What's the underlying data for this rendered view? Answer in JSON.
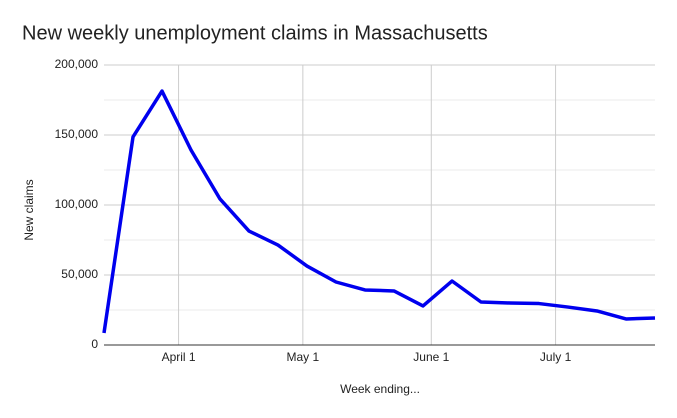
{
  "chart_data": {
    "type": "line",
    "title": "New weekly unemployment claims in Massachusetts",
    "x_label": "Week ending...",
    "y_label": "New claims",
    "x": [
      "March 14",
      "March 21",
      "March 28",
      "April 4",
      "April 11",
      "April 18",
      "April 25",
      "May 2",
      "May 9",
      "May 16",
      "May 23",
      "May 30",
      "June 6",
      "June 13",
      "June 20",
      "June 27",
      "July 4",
      "July 11",
      "July 18",
      "July 25"
    ],
    "series": [
      {
        "name": "New claims",
        "color": "#0000ee",
        "values": [
          8600,
          148600,
          181400,
          139300,
          104300,
          81400,
          71400,
          56400,
          45000,
          39300,
          38600,
          27900,
          45700,
          30700,
          30000,
          29600,
          27100,
          24300,
          18600,
          19300
        ]
      }
    ],
    "xlim": [
      "March 14",
      "July 25"
    ],
    "xticks": [
      "April 1",
      "May 1",
      "June 1",
      "July 1"
    ],
    "ylim": [
      0,
      200000
    ],
    "yticks": [
      0,
      {
        "value": 50000,
        "label": "50,000"
      },
      {
        "value": 100000,
        "label": "100,000"
      },
      {
        "value": 150000,
        "label": "150,000"
      },
      {
        "value": 200000,
        "label": "200,000"
      }
    ],
    "grid": true
  }
}
